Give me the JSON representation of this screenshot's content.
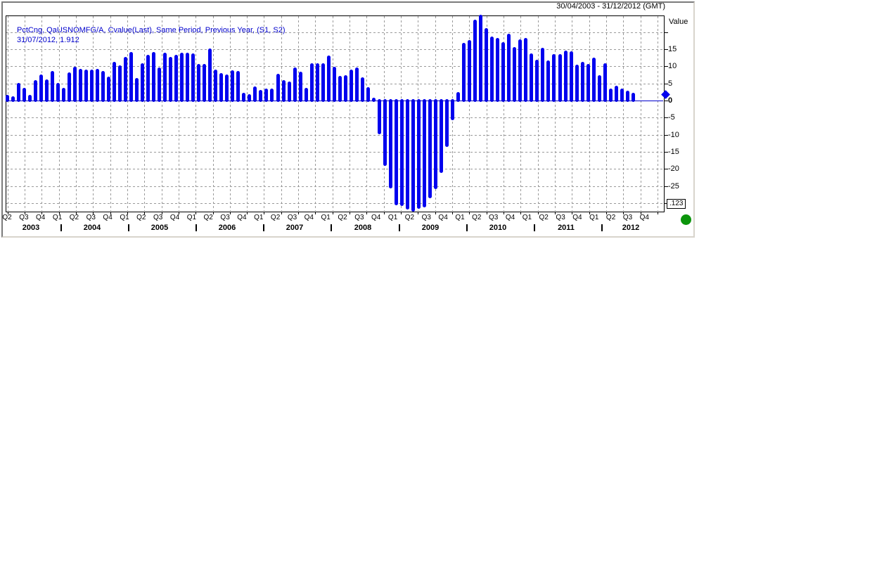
{
  "window": {
    "date_range": "30/04/2003 - 31/12/2012 (GMT)",
    "axis_title": "Value",
    "legend_line1": "PctCng, QaUSNOMFG/A, Cvalue(Last), Same Period, Previous Year, (S1, S2)",
    "legend_line2": "31/07/2012, 1.912",
    "decimal_box": ".123",
    "status_dot_color": "#0c950c"
  },
  "chart_data": {
    "type": "bar",
    "title": "PctCng, QaUSNOMFG/A, Cvalue(Last), Same Period, Previous Year, (S1, S2)",
    "xlabel": "",
    "ylabel": "Value",
    "frequency": "monthly",
    "x_start": "2003-04",
    "x_end": "2012-07",
    "x_axis_end": "2012-12",
    "values": [
      1.3,
      0.9,
      4.7,
      3.2,
      1.2,
      5.5,
      7.2,
      5.8,
      8.3,
      4.7,
      3.3,
      7.9,
      9.4,
      8.8,
      8.7,
      8.6,
      8.8,
      8.3,
      6.6,
      11.0,
      9.9,
      12.4,
      13.8,
      6.1,
      10.5,
      12.9,
      13.8,
      9.2,
      13.5,
      12.3,
      12.9,
      13.6,
      13.5,
      13.3,
      10.2,
      10.3,
      14.9,
      8.7,
      7.6,
      7.1,
      8.5,
      8.3,
      1.8,
      1.4,
      3.8,
      2.7,
      3.0,
      3.0,
      7.5,
      5.5,
      5.1,
      9.3,
      8.0,
      3.2,
      10.5,
      10.5,
      10.5,
      12.8,
      9.4,
      6.8,
      6.9,
      8.6,
      9.2,
      6.4,
      3.6,
      0.4,
      -9.5,
      -18.6,
      -25.3,
      -30.1,
      -30.3,
      -31.4,
      -32.1,
      -31.2,
      -30.9,
      -28.2,
      -25.5,
      -20.8,
      -13.1,
      -5.4,
      2.1,
      16.4,
      17.2,
      23.2,
      24.6,
      20.7,
      18.4,
      17.9,
      16.7,
      19.1,
      15.3,
      17.4,
      17.9,
      13.4,
      11.6,
      15.0,
      11.4,
      13.2,
      13.1,
      14.1,
      14.0,
      10.0,
      10.9,
      10.3,
      12.1,
      6.9,
      10.4,
      3.0,
      3.9,
      3.0,
      2.5,
      1.912
    ],
    "last_value": 1.912,
    "last_value_date": "31/07/2012",
    "ylim": [
      -32.5,
      25
    ],
    "y_tick_labels": [
      15,
      10,
      5,
      0,
      -5,
      -10,
      -15,
      -20,
      -25
    ],
    "y_ticks_unlabeled": [
      20,
      -30
    ],
    "grid_y": [
      20,
      15,
      10,
      5,
      -5,
      -10,
      -15,
      -20,
      -25,
      -30
    ],
    "quarter_labels": [
      "Q2",
      "Q3",
      "Q4",
      "Q1",
      "Q2",
      "Q3",
      "Q4",
      "Q1",
      "Q2",
      "Q3",
      "Q4",
      "Q1",
      "Q2",
      "Q3",
      "Q4",
      "Q1",
      "Q2",
      "Q3",
      "Q4",
      "Q1",
      "Q2",
      "Q3",
      "Q4",
      "Q1",
      "Q2",
      "Q3",
      "Q4",
      "Q1",
      "Q2",
      "Q3",
      "Q4",
      "Q1",
      "Q2",
      "Q3",
      "Q4",
      "Q1",
      "Q2",
      "Q3",
      "Q4"
    ],
    "year_labels": [
      "2003",
      "2004",
      "2005",
      "2006",
      "2007",
      "2008",
      "2009",
      "2010",
      "2011",
      "2012"
    ],
    "legend_position": "top-left",
    "grid": true,
    "bar_color": "#0101ee",
    "zero_line_color": "#0000cc",
    "grid_color": "#9a9a9a"
  }
}
